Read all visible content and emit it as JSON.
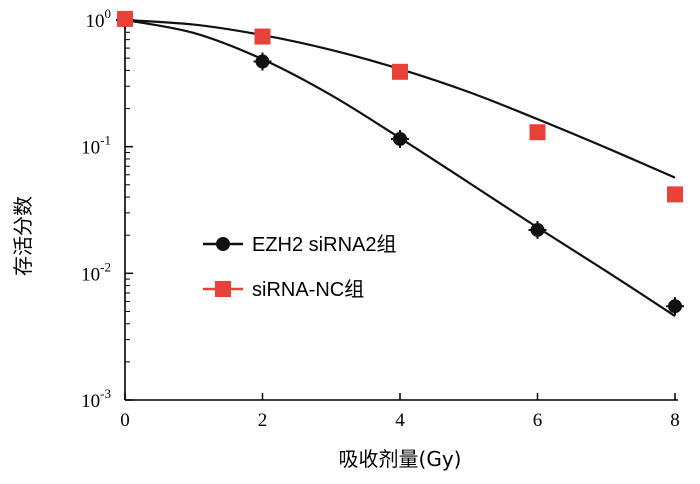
{
  "chart_data": {
    "type": "scatter",
    "xlabel": "吸收剂量(Gy)",
    "ylabel": "存活分数",
    "x_ticks": [
      "0",
      "2",
      "4",
      "6",
      "8"
    ],
    "y_ticks": [
      {
        "base": "10",
        "exp": "0",
        "value": 1
      },
      {
        "base": "10",
        "exp": "-1",
        "value": 0.1
      },
      {
        "base": "10",
        "exp": "-2",
        "value": 0.01
      },
      {
        "base": "10",
        "exp": "-3",
        "value": 0.001
      }
    ],
    "xlim": [
      0,
      8
    ],
    "ylim": [
      0.001,
      1
    ],
    "yscale": "log",
    "grid": false,
    "legend_position": "lower-left",
    "series": [
      {
        "name": "EZH2 siRNA2组",
        "marker": "circle",
        "color": "#111111",
        "x": [
          0,
          2,
          4,
          6,
          8
        ],
        "y": [
          1.0,
          0.47,
          0.115,
          0.022,
          0.0055
        ],
        "fit": {
          "x": [
            0,
            1,
            2,
            3,
            4,
            5,
            6,
            7,
            8
          ],
          "y": [
            1.0,
            0.79,
            0.49,
            0.255,
            0.117,
            0.052,
            0.023,
            0.0104,
            0.0046
          ]
        }
      },
      {
        "name": "siRNA-NC组",
        "marker": "square",
        "color": "#e8413a",
        "x": [
          0,
          2,
          4,
          6,
          8
        ],
        "y": [
          1.02,
          0.74,
          0.39,
          0.13,
          0.042
        ],
        "fit": {
          "x": [
            0,
            1,
            2,
            3,
            4,
            5,
            6,
            7,
            8
          ],
          "y": [
            1.0,
            0.92,
            0.76,
            0.58,
            0.41,
            0.27,
            0.165,
            0.098,
            0.057
          ]
        }
      }
    ]
  }
}
